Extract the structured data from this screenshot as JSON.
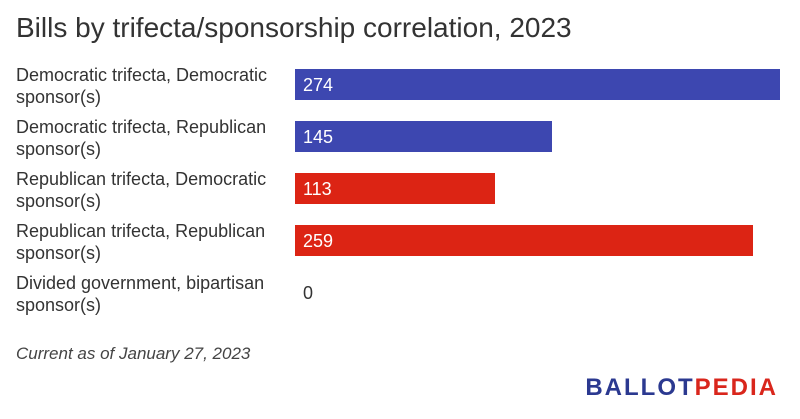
{
  "title": "Bills by trifecta/sponsorship correlation, 2023",
  "footnote": "Current as of January 27, 2023",
  "logo": {
    "part1": "BALLOT",
    "part2": "PEDIA",
    "color1": "#2b3990",
    "color2": "#d9261c"
  },
  "colors": {
    "democratic": "#3d47b0",
    "republican": "#dc2414"
  },
  "chart_data": {
    "type": "bar",
    "orientation": "horizontal",
    "title": "Bills by trifecta/sponsorship correlation, 2023",
    "categories": [
      "Democratic trifecta, Democratic sponsor(s)",
      "Democratic trifecta, Republican sponsor(s)",
      "Republican trifecta, Democratic sponsor(s)",
      "Republican trifecta, Republican sponsor(s)",
      "Divided government, bipartisan sponsor(s)"
    ],
    "values": [
      274,
      145,
      113,
      259,
      0
    ],
    "value_labels": [
      "274",
      "145",
      "113",
      "259",
      "0"
    ],
    "bar_colors": [
      "#3d47b0",
      "#3d47b0",
      "#dc2414",
      "#dc2414",
      "#999999"
    ],
    "xlim": [
      0,
      274
    ],
    "grid": false,
    "legend": "none"
  }
}
